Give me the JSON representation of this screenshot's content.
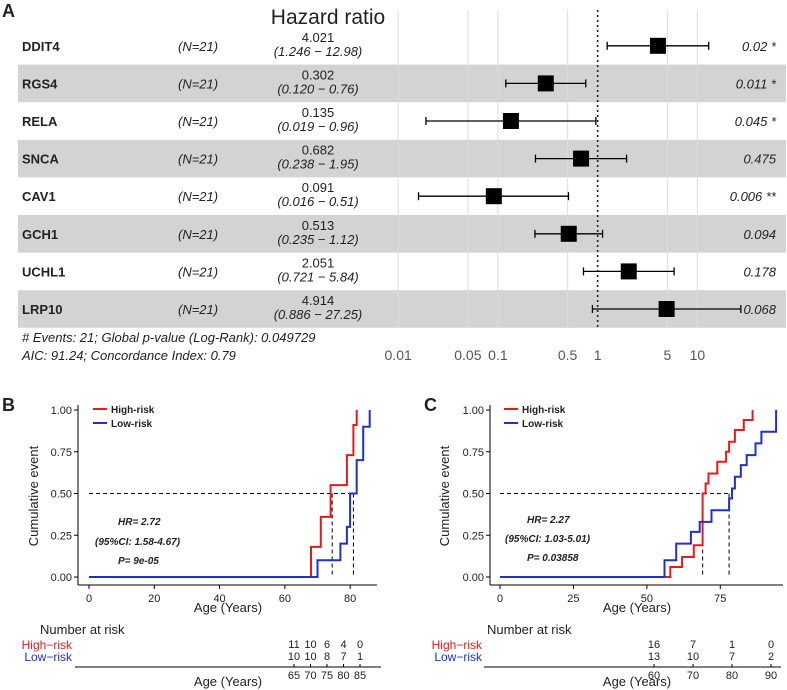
{
  "chart_data": [
    {
      "type": "forest",
      "panel": "A",
      "title": "Hazard ratio",
      "rows": [
        {
          "gene": "DDIT4",
          "n": "(N=21)",
          "hr_text": "4.021",
          "ci_text": "(1.246 − 12.98)",
          "p_text": "0.02 *",
          "hr": 4.021,
          "lo": 1.246,
          "hi": 12.98
        },
        {
          "gene": "RGS4",
          "n": "(N=21)",
          "hr_text": "0.302",
          "ci_text": "(0.120 − 0.76)",
          "p_text": "0.011 *",
          "hr": 0.302,
          "lo": 0.12,
          "hi": 0.76
        },
        {
          "gene": "RELA",
          "n": "(N=21)",
          "hr_text": "0.135",
          "ci_text": "(0.019 − 0.96)",
          "p_text": "0.045 *",
          "hr": 0.135,
          "lo": 0.019,
          "hi": 0.96
        },
        {
          "gene": "SNCA",
          "n": "(N=21)",
          "hr_text": "0.682",
          "ci_text": "(0.238 − 1.95)",
          "p_text": "0.475",
          "hr": 0.682,
          "lo": 0.238,
          "hi": 1.95
        },
        {
          "gene": "CAV1",
          "n": "(N=21)",
          "hr_text": "0.091",
          "ci_text": "(0.016 − 0.51)",
          "p_text": "0.006 **",
          "hr": 0.091,
          "lo": 0.016,
          "hi": 0.51
        },
        {
          "gene": "GCH1",
          "n": "(N=21)",
          "hr_text": "0.513",
          "ci_text": "(0.235 − 1.12)",
          "p_text": "0.094",
          "hr": 0.513,
          "lo": 0.235,
          "hi": 1.12
        },
        {
          "gene": "UCHL1",
          "n": "(N=21)",
          "hr_text": "2.051",
          "ci_text": "(0.721 − 5.84)",
          "p_text": "0.178",
          "hr": 2.051,
          "lo": 0.721,
          "hi": 5.84
        },
        {
          "gene": "LRP10",
          "n": "(N=21)",
          "hr_text": "4.914",
          "ci_text": "(0.886 − 27.25)",
          "p_text": "0.068",
          "hr": 4.914,
          "lo": 0.886,
          "hi": 27.25
        }
      ],
      "ticks": [
        0.01,
        0.05,
        0.1,
        0.5,
        1,
        5,
        10
      ],
      "tick_labels": [
        "0.01",
        "0.05",
        "0.1",
        "0.5",
        "1",
        "5",
        "10"
      ],
      "xlim_log": [
        0.003,
        28
      ],
      "reference": 1,
      "footer": [
        "# Events: 21; Global p-value (Log-Rank): 0.049729",
        "AIC: 91.24; Concordance Index: 0.79"
      ]
    },
    {
      "type": "line",
      "panel": "B",
      "xlabel": "Age (Years)",
      "ylabel": "Cumulative event",
      "xlim": [
        0,
        87
      ],
      "ylim": [
        0,
        1
      ],
      "xticks": [
        0,
        20,
        40,
        60,
        80
      ],
      "yticks": [
        0,
        0.25,
        0.5,
        0.75,
        1
      ],
      "ytick_labels": [
        "0.00",
        "0.25",
        "0.50",
        "0.75",
        "1.00"
      ],
      "series": [
        {
          "name": "High-risk",
          "color": "#e41a1c",
          "steps": [
            [
              0,
              0
            ],
            [
              68,
              0
            ],
            [
              68,
              0.18
            ],
            [
              71,
              0.18
            ],
            [
              71,
              0.36
            ],
            [
              74,
              0.36
            ],
            [
              74,
              0.55
            ],
            [
              79,
              0.55
            ],
            [
              79,
              0.73
            ],
            [
              81,
              0.73
            ],
            [
              81,
              0.91
            ],
            [
              82,
              0.91
            ],
            [
              82,
              1.0
            ]
          ]
        },
        {
          "name": "Low-risk",
          "color": "#1f2fd0",
          "steps": [
            [
              0,
              0
            ],
            [
              70,
              0
            ],
            [
              70,
              0.1
            ],
            [
              77,
              0.1
            ],
            [
              77,
              0.2
            ],
            [
              79,
              0.2
            ],
            [
              79,
              0.3
            ],
            [
              80,
              0.3
            ],
            [
              80,
              0.5
            ],
            [
              82,
              0.5
            ],
            [
              82,
              0.7
            ],
            [
              84,
              0.7
            ],
            [
              84,
              0.9
            ],
            [
              86,
              0.9
            ],
            [
              86,
              1.0
            ]
          ]
        }
      ],
      "median_lines": [
        74.5,
        81
      ],
      "annotation": [
        "HR= 2.72",
        "(95%CI: 1.58-4.67)",
        "P= 9e-05"
      ],
      "risk_table": {
        "title": "Number at risk",
        "xlabel": "Age (Years)",
        "times": [
          65,
          70,
          75,
          80,
          85
        ],
        "time_labels": [
          "65",
          "70",
          "75",
          "80",
          "85"
        ],
        "rows": [
          {
            "name": "High−risk",
            "counts": [
              "11",
              "10",
              "6",
              "4",
              "0"
            ]
          },
          {
            "name": "Low−risk",
            "counts": [
              "10",
              "10",
              "8",
              "7",
              "1"
            ]
          }
        ]
      }
    },
    {
      "type": "line",
      "panel": "C",
      "xlabel": "Age (Years)",
      "ylabel": "Cumulative event",
      "xlim": [
        0,
        95
      ],
      "ylim": [
        0,
        1
      ],
      "xticks": [
        0,
        25,
        50,
        75
      ],
      "yticks": [
        0,
        0.25,
        0.5,
        0.75,
        1
      ],
      "ytick_labels": [
        "0.00",
        "0.25",
        "0.50",
        "0.75",
        "1.00"
      ],
      "series": [
        {
          "name": "High-risk",
          "color": "#e41a1c",
          "steps": [
            [
              0,
              0
            ],
            [
              58,
              0
            ],
            [
              58,
              0.06
            ],
            [
              62,
              0.06
            ],
            [
              62,
              0.12
            ],
            [
              66,
              0.12
            ],
            [
              66,
              0.19
            ],
            [
              69,
              0.19
            ],
            [
              69,
              0.5
            ],
            [
              70,
              0.5
            ],
            [
              70,
              0.56
            ],
            [
              71,
              0.56
            ],
            [
              71,
              0.62
            ],
            [
              74,
              0.62
            ],
            [
              74,
              0.69
            ],
            [
              77,
              0.69
            ],
            [
              77,
              0.75
            ],
            [
              78,
              0.75
            ],
            [
              78,
              0.81
            ],
            [
              80,
              0.81
            ],
            [
              80,
              0.88
            ],
            [
              83,
              0.88
            ],
            [
              83,
              0.94
            ],
            [
              86,
              0.94
            ],
            [
              86,
              1.0
            ]
          ]
        },
        {
          "name": "Low-risk",
          "color": "#1f2fd0",
          "steps": [
            [
              0,
              0
            ],
            [
              56,
              0
            ],
            [
              56,
              0.1
            ],
            [
              60,
              0.1
            ],
            [
              60,
              0.2
            ],
            [
              65,
              0.2
            ],
            [
              65,
              0.27
            ],
            [
              68,
              0.27
            ],
            [
              68,
              0.33
            ],
            [
              72,
              0.33
            ],
            [
              72,
              0.4
            ],
            [
              78,
              0.4
            ],
            [
              78,
              0.47
            ],
            [
              79,
              0.47
            ],
            [
              79,
              0.53
            ],
            [
              80,
              0.53
            ],
            [
              80,
              0.6
            ],
            [
              82,
              0.6
            ],
            [
              82,
              0.67
            ],
            [
              84,
              0.67
            ],
            [
              84,
              0.73
            ],
            [
              87,
              0.73
            ],
            [
              87,
              0.8
            ],
            [
              89,
              0.8
            ],
            [
              89,
              0.87
            ],
            [
              94,
              0.87
            ],
            [
              94,
              1.0
            ]
          ]
        }
      ],
      "median_lines": [
        69,
        78
      ],
      "annotation": [
        "HR= 2.27",
        "(95%CI: 1.03-5.01)",
        "P= 0.03858"
      ],
      "risk_table": {
        "title": "Number at risk",
        "xlabel": "Age (Years)",
        "times": [
          60,
          70,
          80,
          90
        ],
        "time_labels": [
          "60",
          "70",
          "80",
          "90"
        ],
        "rows": [
          {
            "name": "High−risk",
            "counts": [
              "16",
              "7",
              "1",
              "0"
            ]
          },
          {
            "name": "Low−risk",
            "counts": [
              "13",
              "10",
              "7",
              "2"
            ]
          }
        ]
      }
    }
  ],
  "panel_labels": {
    "a": "A",
    "b": "B",
    "c": "C"
  },
  "legend": {
    "high": "High-risk",
    "low": "Low-risk"
  },
  "colors": {
    "high": "#e41a1c",
    "low": "#1f2fd0",
    "band": "#d3d3d3",
    "grid": "#dddddd"
  }
}
